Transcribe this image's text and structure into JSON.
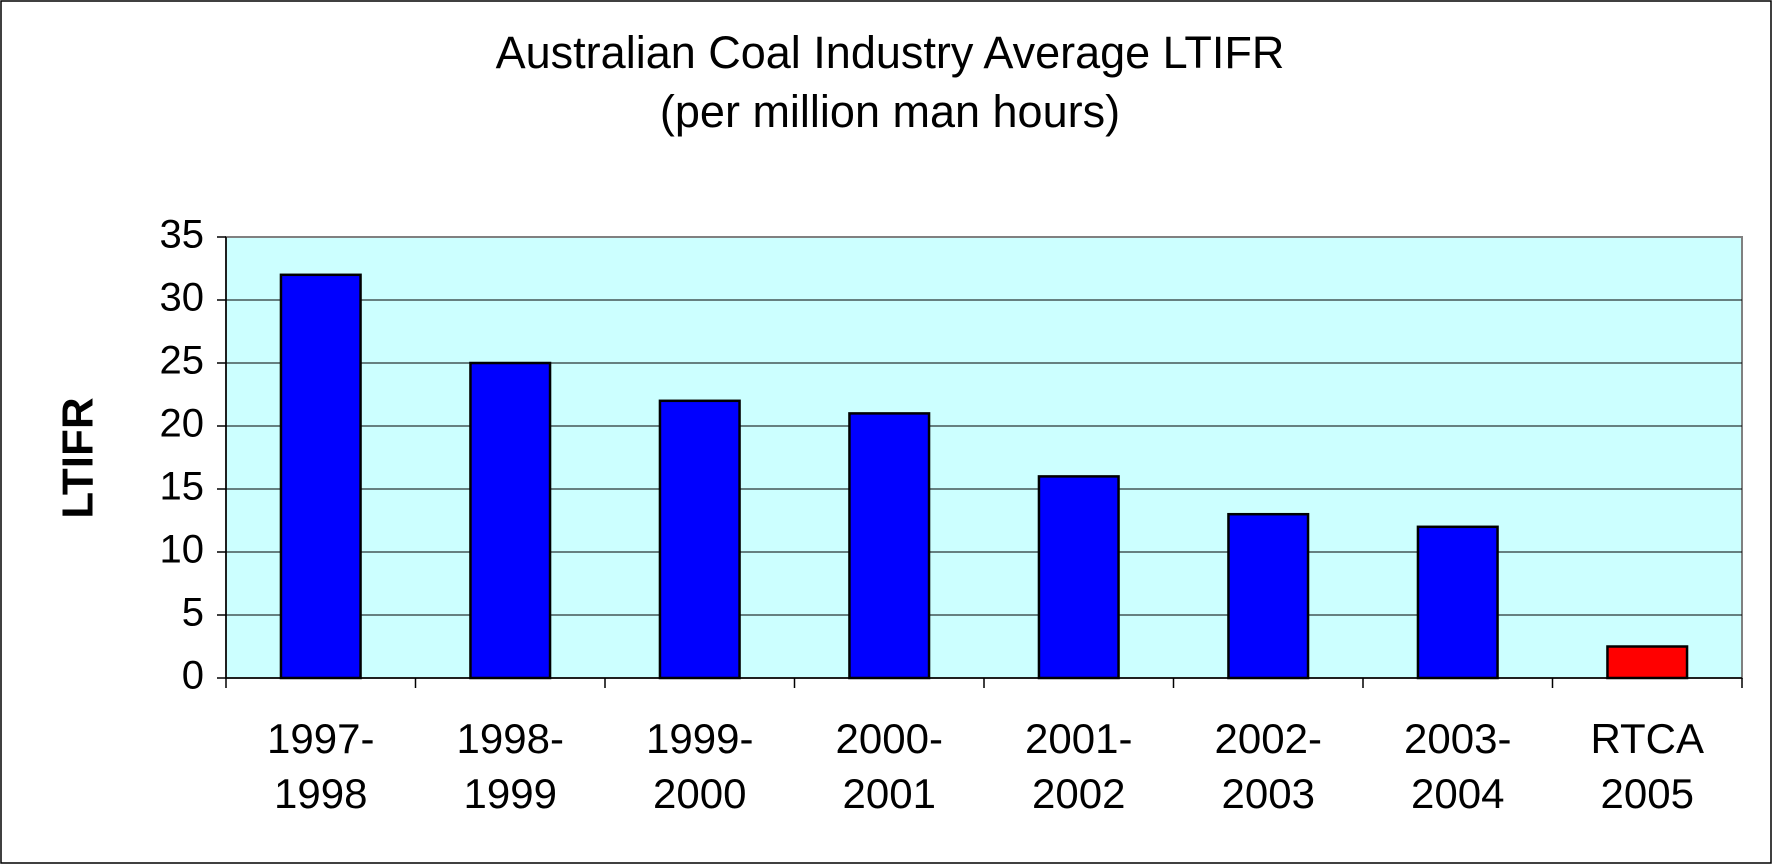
{
  "chart_data": {
    "type": "bar",
    "title": [
      "Australian Coal Industry Average LTIFR",
      "(per million man hours)"
    ],
    "y_label": "LTIFR",
    "categories": [
      [
        "1997-",
        "1998"
      ],
      [
        "1998-",
        "1999"
      ],
      [
        "1999-",
        "2000"
      ],
      [
        "2000-",
        "2001"
      ],
      [
        "2001-",
        "2002"
      ],
      [
        "2002-",
        "2003"
      ],
      [
        "2003-",
        "2004"
      ],
      [
        "RTCA",
        "2005"
      ]
    ],
    "values": [
      32,
      25,
      22,
      21,
      16,
      13,
      12,
      2.5
    ],
    "colors": [
      "#0000ff",
      "#0000ff",
      "#0000ff",
      "#0000ff",
      "#0000ff",
      "#0000ff",
      "#0000ff",
      "#ff0000"
    ],
    "plot_background": "#ccffff",
    "ylim": [
      0,
      35
    ],
    "yticks": [
      0,
      5,
      10,
      15,
      20,
      25,
      30,
      35
    ],
    "grid": true
  }
}
